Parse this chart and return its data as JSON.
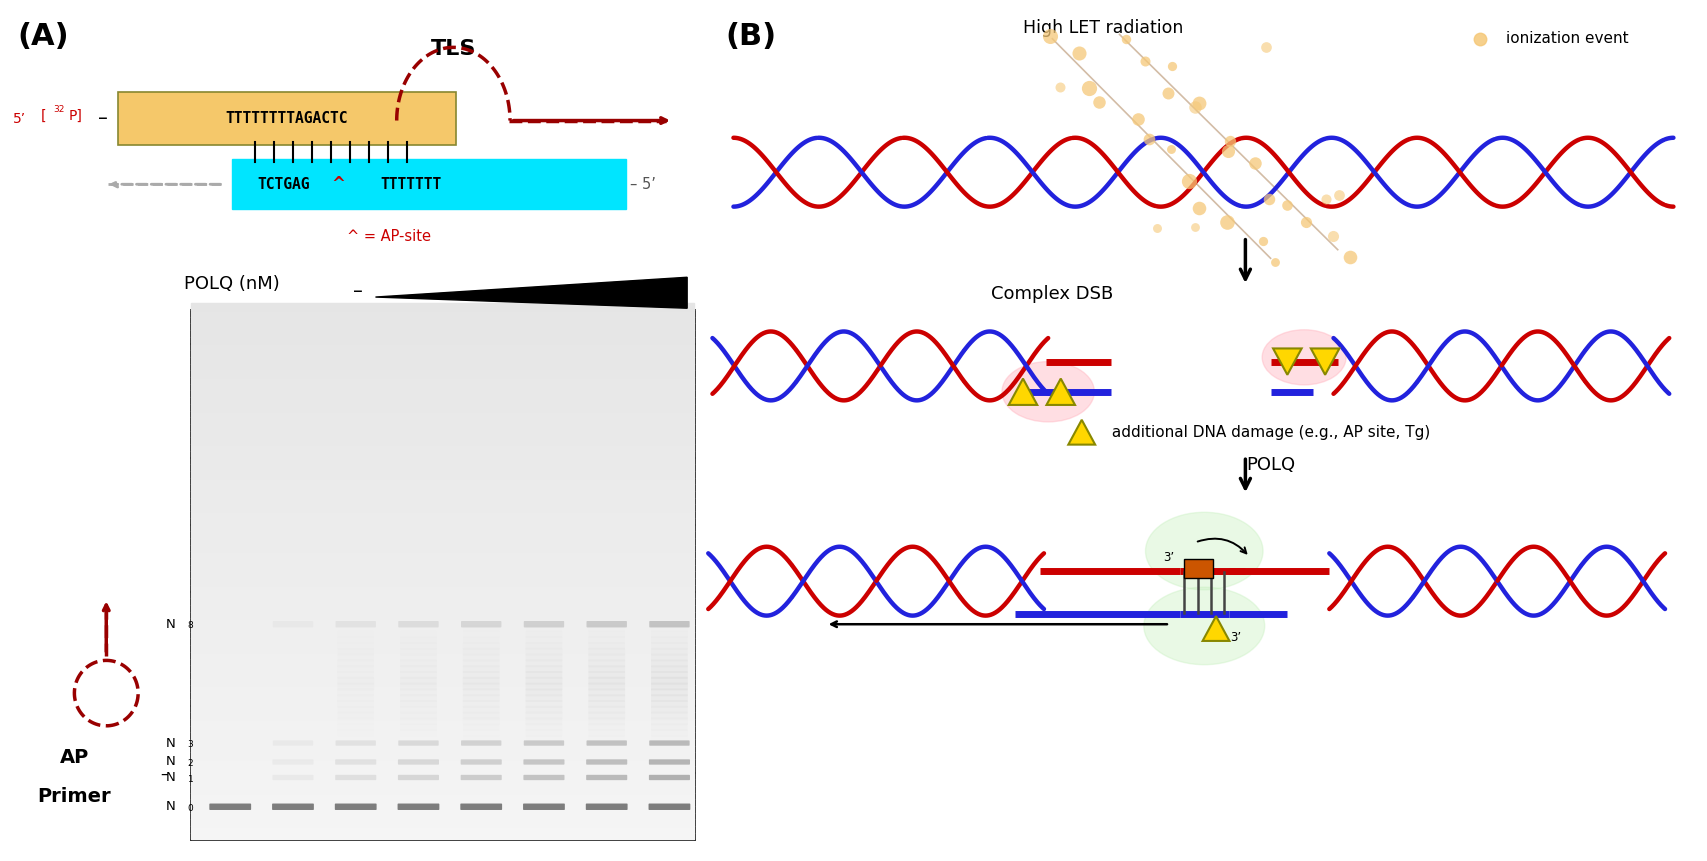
{
  "panel_a_label": "(A)",
  "panel_b_label": "(B)",
  "tls_label": "TLS",
  "seq_top": "TTTTTTTTAGACTC",
  "seq_bottom_left": "TCTGAG",
  "ap_site_symbol": "^",
  "seq_bottom_right": "TTTTTTT",
  "five_prime_end": "-5’",
  "ap_site_legend": "^ = AP-site",
  "polq_label": "POLQ (nM)",
  "top_box_color": "#F5C86A",
  "bottom_box_color": "#00E5FF",
  "b_title1": "High LET radiation",
  "b_legend": "ionization event",
  "b_label2": "Complex DSB",
  "b_label3": " additional DNA damage (e.g., AP site, Tg)",
  "b_label4": "POLQ",
  "dna_red": "#cc0000",
  "dna_blue": "#2222dd",
  "ionization_color": "#F5C878",
  "damage_marker_color": "#FFD700",
  "damage_marker_edge": "#888800",
  "pink_blob_color": "#FFB6C1",
  "green_blob_color": "#c8f0c0",
  "white_bg": "#ffffff"
}
